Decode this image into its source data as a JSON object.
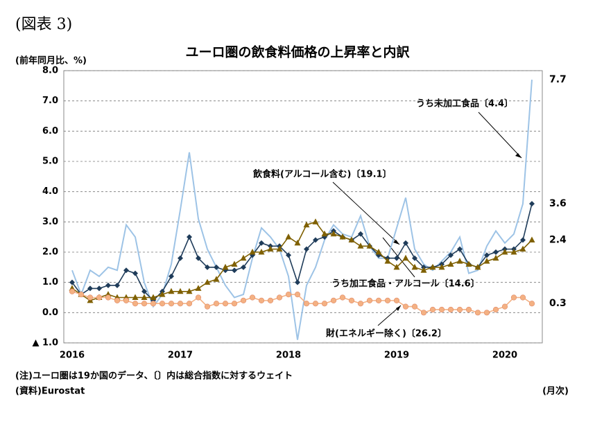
{
  "figure_label": "(図表 3)",
  "chart_data": {
    "type": "line",
    "title": "ユーロ圏の飲食料価格の上昇率と内訳",
    "y_label": "(前年同月比、%)",
    "x_label": "(月次)",
    "notes": [
      "(注)ユーロ圏は19か国のデータ、〔〕内は総合指数に対するウェイト",
      "(資料)Eurostat"
    ],
    "categories": [
      "2016",
      null,
      null,
      null,
      null,
      null,
      null,
      null,
      null,
      null,
      null,
      null,
      "2017",
      null,
      null,
      null,
      null,
      null,
      null,
      null,
      null,
      null,
      null,
      null,
      "2018",
      null,
      null,
      null,
      null,
      null,
      null,
      null,
      null,
      null,
      null,
      null,
      "2019",
      null,
      null,
      null,
      null,
      null,
      null,
      null,
      null,
      null,
      null,
      null,
      "2020",
      null,
      null,
      null
    ],
    "ylim": [
      -1,
      8
    ],
    "yticks": [
      {
        "value": -1,
        "label": "▲ 1.0"
      },
      {
        "value": 0,
        "label": "0.0"
      },
      {
        "value": 1,
        "label": "1.0"
      },
      {
        "value": 2,
        "label": "2.0"
      },
      {
        "value": 3,
        "label": "3.0"
      },
      {
        "value": 4,
        "label": "4.0"
      },
      {
        "value": 5,
        "label": "5.0"
      },
      {
        "value": 6,
        "label": "6.0"
      },
      {
        "value": 7,
        "label": "7.0"
      },
      {
        "value": 8,
        "label": "8.0"
      }
    ],
    "grid": true,
    "series": [
      {
        "name": "うち未加工食品〔4.4〕",
        "color": "#9dc3e6",
        "marker": "none",
        "values": [
          1.4,
          0.6,
          1.4,
          1.2,
          1.5,
          1.4,
          2.9,
          2.5,
          1.0,
          0.2,
          0.6,
          1.6,
          3.4,
          5.3,
          3.1,
          2.1,
          1.5,
          0.9,
          0.5,
          0.6,
          1.8,
          2.8,
          2.5,
          2.1,
          1.2,
          -0.9,
          0.9,
          1.5,
          2.4,
          2.9,
          2.6,
          2.5,
          3.2,
          2.2,
          1.8,
          1.8,
          2.8,
          3.8,
          2.1,
          1.6,
          1.4,
          1.7,
          2.0,
          2.5,
          1.3,
          1.4,
          2.2,
          2.7,
          2.3,
          2.6,
          3.6,
          7.7
        ]
      },
      {
        "name": "飲食料(アルコール含む)〔19.1〕",
        "color": "#1f3c5a",
        "marker": "diamond",
        "values": [
          1.0,
          0.6,
          0.8,
          0.8,
          0.9,
          0.9,
          1.4,
          1.3,
          0.7,
          0.4,
          0.7,
          1.2,
          1.8,
          2.5,
          1.8,
          1.5,
          1.5,
          1.4,
          1.4,
          1.5,
          1.9,
          2.3,
          2.2,
          2.2,
          1.9,
          1.0,
          2.1,
          2.4,
          2.5,
          2.7,
          2.5,
          2.4,
          2.6,
          2.2,
          1.9,
          1.8,
          1.8,
          2.3,
          1.8,
          1.5,
          1.5,
          1.6,
          1.9,
          2.1,
          1.6,
          1.5,
          1.9,
          2.0,
          2.1,
          2.1,
          2.4,
          3.6
        ]
      },
      {
        "name": "うち加工食品・アルコール〔14.6〕",
        "color": "#7f6000",
        "marker": "triangle",
        "values": [
          0.8,
          0.6,
          0.4,
          0.5,
          0.6,
          0.5,
          0.5,
          0.5,
          0.5,
          0.5,
          0.6,
          0.7,
          0.7,
          0.7,
          0.8,
          1.0,
          1.1,
          1.5,
          1.6,
          1.8,
          2.0,
          2.0,
          2.1,
          2.1,
          2.5,
          2.3,
          2.9,
          3.0,
          2.6,
          2.6,
          2.5,
          2.4,
          2.2,
          2.2,
          2.0,
          1.7,
          1.5,
          1.8,
          1.5,
          1.4,
          1.5,
          1.5,
          1.6,
          1.7,
          1.6,
          1.5,
          1.7,
          1.8,
          2.0,
          2.0,
          2.1,
          2.4
        ]
      },
      {
        "name": "財(エネルギー除く)〔26.2〕",
        "color": "#f4b183",
        "marker": "circle",
        "values": [
          0.7,
          0.6,
          0.5,
          0.5,
          0.5,
          0.4,
          0.4,
          0.3,
          0.3,
          0.3,
          0.3,
          0.3,
          0.3,
          0.3,
          0.5,
          0.2,
          0.3,
          0.3,
          0.3,
          0.4,
          0.5,
          0.4,
          0.4,
          0.5,
          0.6,
          0.6,
          0.3,
          0.3,
          0.3,
          0.4,
          0.5,
          0.4,
          0.3,
          0.4,
          0.4,
          0.4,
          0.4,
          0.2,
          0.2,
          0.0,
          0.1,
          0.1,
          0.1,
          0.1,
          0.1,
          0.0,
          0.0,
          0.1,
          0.2,
          0.5,
          0.5,
          0.3
        ]
      }
    ]
  }
}
